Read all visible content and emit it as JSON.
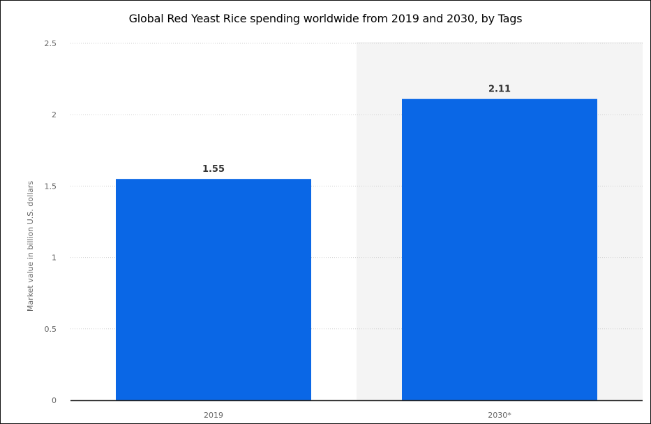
{
  "chart_data": {
    "type": "bar",
    "title": "Global Red Yeast Rice spending worldwide from 2019 and 2030, by Tags",
    "xlabel": "",
    "ylabel": "Market value in billion U.S. dollars",
    "categories": [
      "2019",
      "2030*"
    ],
    "values": [
      1.55,
      2.11
    ],
    "data_labels": [
      "1.55",
      "2.11"
    ],
    "y_ticks": [
      0,
      0.5,
      1,
      1.5,
      2,
      2.5
    ],
    "y_tick_labels": [
      "0",
      "0.5",
      "1",
      "1.5",
      "2",
      "2.5"
    ],
    "ylim": [
      0,
      2.5
    ],
    "grid": true,
    "bar_color": "#0a67e6",
    "forecast_shade_color": "#f4f4f4",
    "forecast_shaded_category": "2030*"
  }
}
